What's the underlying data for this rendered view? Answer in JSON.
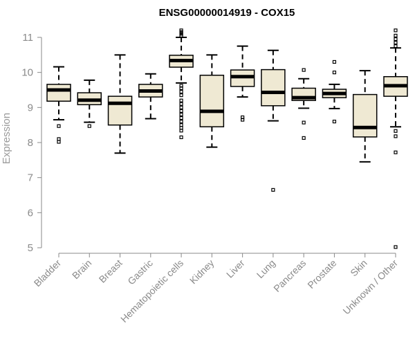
{
  "chart_data": {
    "type": "box",
    "title": "ENSG00000014919 - COX15",
    "ylabel": "Expression",
    "xlabel": "",
    "ylim": [
      5,
      11
    ],
    "yticks": [
      5,
      6,
      7,
      8,
      9,
      10,
      11
    ],
    "grid": false,
    "colors": {
      "box_fill": "#efe9d3",
      "box_stroke": "#000000",
      "axis": "#888888",
      "text": "#888888"
    },
    "categories": [
      "Bladder",
      "Brain",
      "Breast",
      "Gastric",
      "Hematopoietic cells",
      "Kidney",
      "Liver",
      "Lung",
      "Pancreas",
      "Prostate",
      "Skin",
      "Unknown / Other"
    ],
    "boxes": [
      {
        "whisker_low": 8.65,
        "q1": 9.18,
        "median": 9.5,
        "q3": 9.66,
        "whisker_high": 10.16,
        "outliers": [
          8.47,
          8.1,
          8.02
        ]
      },
      {
        "whisker_low": 8.58,
        "q1": 9.08,
        "median": 9.21,
        "q3": 9.42,
        "whisker_high": 9.78,
        "outliers": [
          8.47
        ]
      },
      {
        "whisker_low": 7.7,
        "q1": 8.5,
        "median": 9.12,
        "q3": 9.32,
        "whisker_high": 10.5,
        "outliers": []
      },
      {
        "whisker_low": 8.68,
        "q1": 9.3,
        "median": 9.47,
        "q3": 9.66,
        "whisker_high": 9.96,
        "outliers": []
      },
      {
        "whisker_low": 9.7,
        "q1": 10.15,
        "median": 10.34,
        "q3": 10.49,
        "whisker_high": 11.0,
        "outliers": [
          11.2,
          11.15,
          11.1,
          11.05,
          9.62,
          9.55,
          9.45,
          9.35,
          9.2,
          9.1,
          9.0,
          8.9,
          8.8,
          8.7,
          8.6,
          8.5,
          8.42,
          8.34,
          8.15
        ]
      },
      {
        "whisker_low": 7.87,
        "q1": 8.45,
        "median": 8.89,
        "q3": 9.92,
        "whisker_high": 10.5,
        "outliers": []
      },
      {
        "whisker_low": 9.3,
        "q1": 9.6,
        "median": 9.88,
        "q3": 10.07,
        "whisker_high": 10.75,
        "outliers": [
          8.72,
          8.65
        ]
      },
      {
        "whisker_low": 8.62,
        "q1": 9.05,
        "median": 9.43,
        "q3": 10.08,
        "whisker_high": 10.63,
        "outliers": [
          6.65
        ]
      },
      {
        "whisker_low": 8.98,
        "q1": 9.2,
        "median": 9.28,
        "q3": 9.55,
        "whisker_high": 9.82,
        "outliers": [
          10.07,
          8.57,
          8.13
        ]
      },
      {
        "whisker_low": 8.97,
        "q1": 9.28,
        "median": 9.4,
        "q3": 9.52,
        "whisker_high": 9.66,
        "outliers": [
          10.3,
          10.0,
          8.6
        ]
      },
      {
        "whisker_low": 7.45,
        "q1": 8.16,
        "median": 8.43,
        "q3": 9.37,
        "whisker_high": 10.05,
        "outliers": []
      },
      {
        "whisker_low": 8.45,
        "q1": 9.32,
        "median": 9.62,
        "q3": 9.88,
        "whisker_high": 10.7,
        "outliers": [
          11.2,
          11.05,
          10.95,
          10.85,
          10.75,
          8.33,
          8.18,
          7.72,
          5.02
        ]
      }
    ]
  }
}
